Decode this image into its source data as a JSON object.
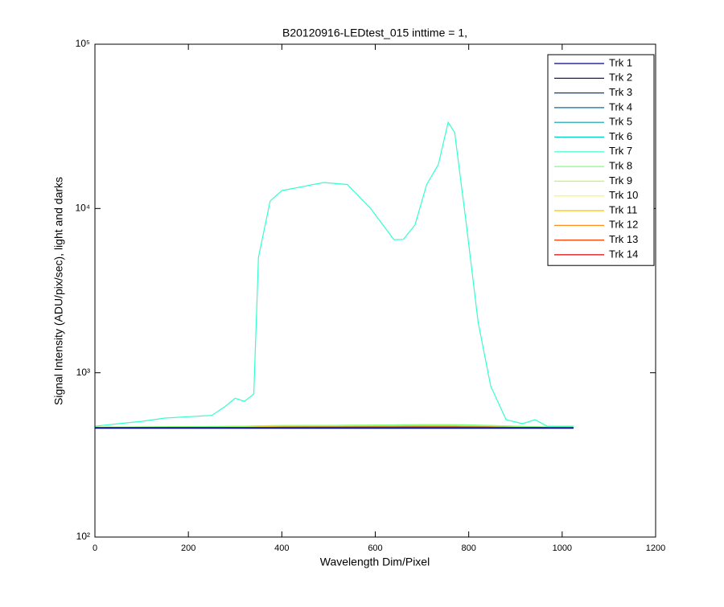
{
  "chart_data": {
    "type": "line",
    "title": "B20120916-LEDtest_015 inttime = 1,",
    "x_label": "Wavelength Dim/Pixel",
    "y_label": "Signal Intensity (ADU/pix/sec), light and darks",
    "x": [
      1,
      50,
      100,
      150,
      200,
      250,
      280,
      300,
      320,
      340,
      350,
      375,
      400,
      490,
      540,
      590,
      640,
      660,
      685,
      710,
      735,
      756,
      770,
      795,
      820,
      847,
      880,
      915,
      942,
      968,
      1024
    ],
    "series": [
      {
        "name": "Trk 1",
        "color": "#00008f",
        "values": [
          460,
          460,
          460,
          460,
          460,
          460,
          460,
          460,
          460,
          460,
          460,
          460,
          460,
          460,
          460,
          460,
          460,
          460,
          460,
          460,
          460,
          460,
          460,
          460,
          460,
          460,
          460,
          460,
          460,
          460,
          460
        ]
      },
      {
        "name": "Trk 2",
        "color": "#000050",
        "values": [
          461,
          461,
          461,
          461,
          461,
          461,
          461,
          461,
          461,
          461,
          461,
          461,
          461,
          461,
          461,
          461,
          461,
          461,
          461,
          461,
          461,
          461,
          461,
          461,
          461,
          461,
          461,
          461,
          461,
          461,
          461
        ]
      },
      {
        "name": "Trk 3",
        "color": "#0040a0",
        "values": [
          462,
          462,
          462,
          462,
          462,
          462,
          462,
          462,
          462,
          462,
          462,
          462,
          462,
          462,
          462,
          462,
          462,
          462,
          462,
          462,
          462,
          462,
          462,
          462,
          462,
          462,
          462,
          462,
          462,
          462,
          462
        ]
      },
      {
        "name": "Trk 4",
        "color": "#0070a0",
        "values": [
          463,
          463,
          463,
          463,
          463,
          463,
          463,
          463,
          463,
          463,
          463,
          463,
          463,
          463,
          463,
          463,
          463,
          463,
          463,
          463,
          463,
          463,
          463,
          463,
          463,
          463,
          463,
          463,
          463,
          463,
          463
        ]
      },
      {
        "name": "Trk 5",
        "color": "#00a0b0",
        "values": [
          464,
          464,
          464,
          464,
          464,
          464,
          464,
          464,
          464,
          464,
          464,
          464,
          464,
          464,
          464,
          464,
          464,
          464,
          464,
          464,
          464,
          464,
          464,
          464,
          464,
          464,
          464,
          464,
          464,
          464,
          464
        ]
      },
      {
        "name": "Trk 6",
        "color": "#00d0c0",
        "values": [
          465,
          465,
          465,
          465,
          465,
          465,
          465,
          465,
          465,
          465,
          465,
          465,
          466,
          466,
          466,
          466,
          466,
          466,
          466,
          466,
          466,
          466,
          466,
          466,
          466,
          466,
          466,
          465,
          465,
          465,
          465
        ]
      },
      {
        "name": "Trk 7",
        "color": "#33ffcc",
        "values": [
          473,
          490,
          506,
          530,
          540,
          550,
          627,
          700,
          670,
          743,
          5050,
          11100,
          12850,
          14400,
          14000,
          10000,
          6460,
          6480,
          7950,
          14000,
          18500,
          33500,
          29000,
          7950,
          2040,
          830,
          518,
          490,
          518,
          473,
          473
        ]
      },
      {
        "name": "Trk 8",
        "color": "#80ff80",
        "values": [
          466,
          467,
          468,
          469,
          470,
          471,
          472,
          473,
          473,
          474,
          475,
          476,
          477,
          478,
          479,
          480,
          481,
          482,
          483,
          484,
          484,
          484,
          483,
          482,
          480,
          478,
          475,
          472,
          470,
          468,
          466
        ]
      },
      {
        "name": "Trk 9",
        "color": "#c0ff40",
        "values": [
          466,
          467,
          468,
          469,
          470,
          471,
          472,
          473,
          473,
          474,
          475,
          476,
          477,
          478,
          479,
          480,
          481,
          482,
          482,
          483,
          483,
          483,
          482,
          481,
          479,
          477,
          474,
          471,
          469,
          467,
          466
        ]
      },
      {
        "name": "Trk 10",
        "color": "#ffff00",
        "values": [
          466,
          466,
          467,
          468,
          469,
          470,
          471,
          472,
          472,
          473,
          474,
          475,
          476,
          477,
          478,
          479,
          480,
          480,
          481,
          481,
          481,
          481,
          480,
          479,
          478,
          476,
          474,
          471,
          469,
          467,
          466
        ]
      },
      {
        "name": "Trk 11",
        "color": "#ffc000",
        "values": [
          465,
          466,
          466,
          467,
          468,
          469,
          470,
          470,
          471,
          472,
          472,
          473,
          474,
          475,
          476,
          477,
          477,
          478,
          478,
          478,
          478,
          478,
          478,
          477,
          476,
          475,
          473,
          471,
          468,
          466,
          465
        ]
      },
      {
        "name": "Trk 12",
        "color": "#ff8000",
        "values": [
          465,
          465,
          466,
          466,
          467,
          468,
          468,
          469,
          469,
          470,
          470,
          471,
          472,
          473,
          473,
          474,
          474,
          475,
          475,
          475,
          475,
          475,
          475,
          474,
          474,
          473,
          472,
          470,
          468,
          466,
          465
        ]
      },
      {
        "name": "Trk 13",
        "color": "#ff4000",
        "values": [
          464,
          464,
          465,
          465,
          466,
          466,
          467,
          467,
          467,
          468,
          468,
          468,
          469,
          469,
          470,
          470,
          471,
          471,
          471,
          471,
          471,
          471,
          471,
          471,
          470,
          470,
          469,
          468,
          466,
          465,
          464
        ]
      },
      {
        "name": "Trk 14",
        "color": "#e00000",
        "values": [
          463,
          463,
          464,
          464,
          464,
          465,
          465,
          465,
          465,
          466,
          466,
          466,
          466,
          467,
          467,
          467,
          467,
          467,
          468,
          468,
          468,
          468,
          468,
          467,
          467,
          467,
          466,
          465,
          465,
          464,
          463
        ]
      }
    ],
    "xlim": [
      0,
      1200
    ],
    "xticks": [
      0,
      200,
      400,
      600,
      800,
      1000,
      1200
    ],
    "ylim": [
      100,
      100000
    ],
    "ylog": true,
    "yticks": [
      {
        "value": 100,
        "label": "10²"
      },
      {
        "value": 1000,
        "label": "10³"
      },
      {
        "value": 10000,
        "label": "10⁴"
      },
      {
        "value": 100000,
        "label": "10⁵"
      }
    ],
    "legend": "upper right",
    "grid": false
  }
}
